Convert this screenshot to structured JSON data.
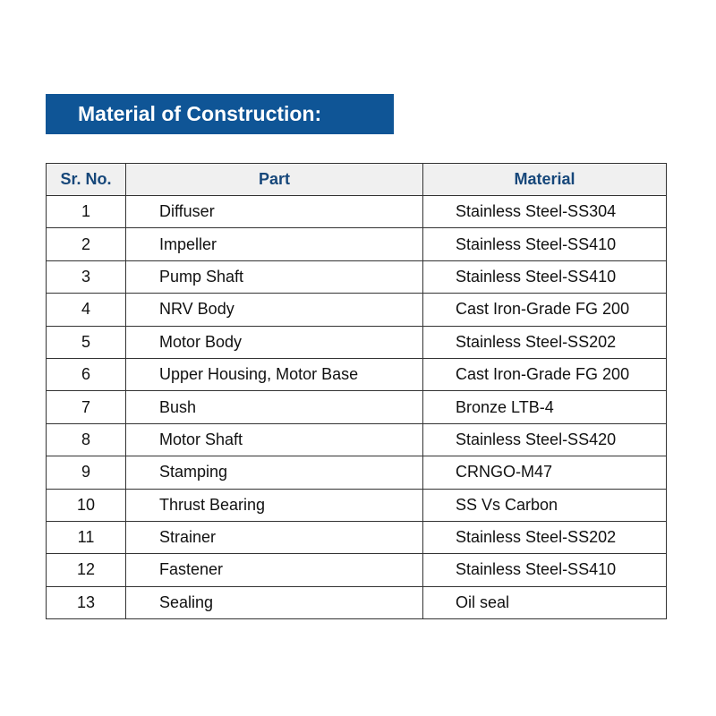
{
  "title": "Material of Construction:",
  "colors": {
    "banner": "#0f5596",
    "header_text": "#16477a",
    "header_bg": "#f0f0f0"
  },
  "table": {
    "headers": [
      "Sr. No.",
      "Part",
      "Material"
    ],
    "rows": [
      [
        "1",
        "Diffuser",
        "Stainless Steel-SS304"
      ],
      [
        "2",
        "Impeller",
        "Stainless Steel-SS410"
      ],
      [
        "3",
        "Pump Shaft",
        "Stainless Steel-SS410"
      ],
      [
        "4",
        "NRV Body",
        "Cast Iron-Grade FG 200"
      ],
      [
        "5",
        "Motor Body",
        "Stainless Steel-SS202"
      ],
      [
        "6",
        "Upper Housing, Motor Base",
        "Cast Iron-Grade FG 200"
      ],
      [
        "7",
        "Bush",
        "Bronze LTB-4"
      ],
      [
        "8",
        "Motor Shaft",
        "Stainless Steel-SS420"
      ],
      [
        "9",
        "Stamping",
        "CRNGO-M47"
      ],
      [
        "10",
        "Thrust Bearing",
        "SS Vs Carbon"
      ],
      [
        "11",
        "Strainer",
        "Stainless Steel-SS202"
      ],
      [
        "12",
        "Fastener",
        "Stainless Steel-SS410"
      ],
      [
        "13",
        "Sealing",
        "Oil seal"
      ]
    ]
  }
}
